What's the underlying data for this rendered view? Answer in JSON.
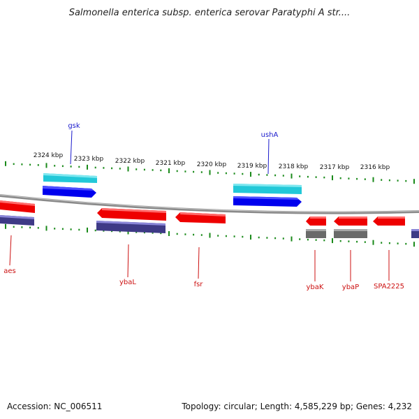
{
  "title": "Salmonella enterica subsp. enterica serovar Paratyphi A str....",
  "footer": {
    "accession": "Accession: NC_006511",
    "summary": "Topology: circular; Length: 4,585,229 bp; Genes: 4,232"
  },
  "colors": {
    "tick": "#1a8a1a",
    "forward_gene": "#0000ee",
    "forward_gene_top": "#3333ff",
    "forward_cds": "#22c8d8",
    "reverse_gene": "#ee0000",
    "reverse_gene_top": "#ff4a4a",
    "reverse_cds": "#3e3a86",
    "reverse_other": "#6a6a6a",
    "forward_label": "#1a1acc",
    "reverse_label": "#cc1010",
    "backbone": "#8a8a8a"
  },
  "scale": {
    "labels": [
      "2324 kbp",
      "2323 kbp",
      "2322 kbp",
      "2321 kbp",
      "2320 kbp",
      "2319 kbp",
      "2318 kbp",
      "2317 kbp",
      "2316 kbp"
    ]
  },
  "features": {
    "forward": [
      {
        "name": "gsk",
        "label": "gsk"
      },
      {
        "name": "ushA",
        "label": "ushA"
      }
    ],
    "reverse": [
      {
        "name": "aes",
        "label": "aes"
      },
      {
        "name": "ybaL",
        "label": "ybaL"
      },
      {
        "name": "fsr",
        "label": "fsr"
      },
      {
        "name": "ybaK",
        "label": "ybaK"
      },
      {
        "name": "ybaP",
        "label": "ybaP"
      },
      {
        "name": "SPA2225",
        "label": "SPA2225"
      }
    ]
  }
}
